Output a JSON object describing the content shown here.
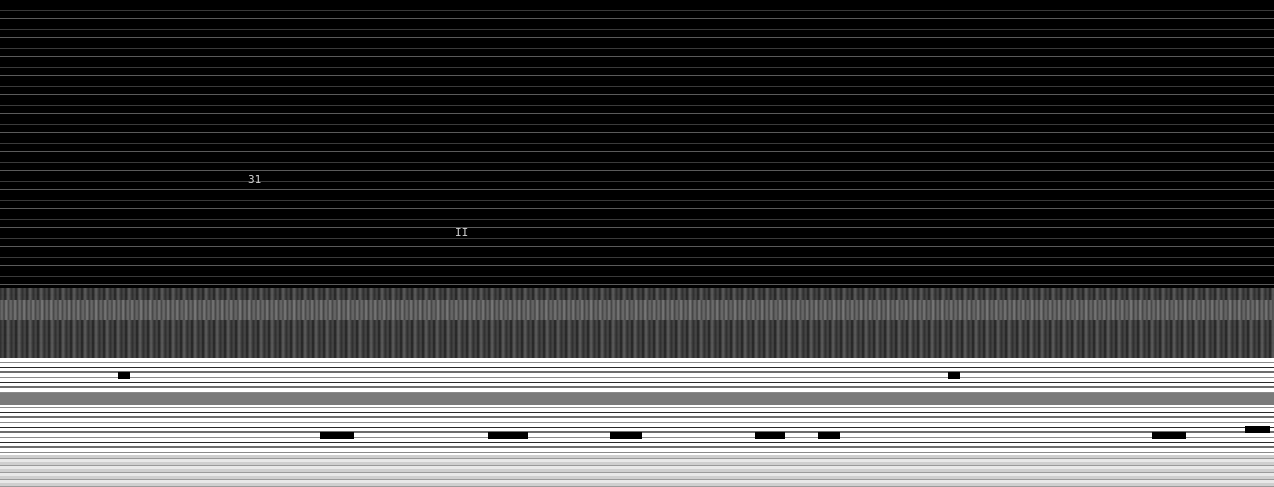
{
  "screen": {
    "description_visible_text": [
      "31",
      "II"
    ],
    "colors": {
      "background": "#000000",
      "scanline": "#3a3a3a",
      "noise": "#4a4a4a",
      "light": "#ffffff"
    }
  },
  "glyphs": {
    "label_a": "31",
    "label_b": "II"
  }
}
